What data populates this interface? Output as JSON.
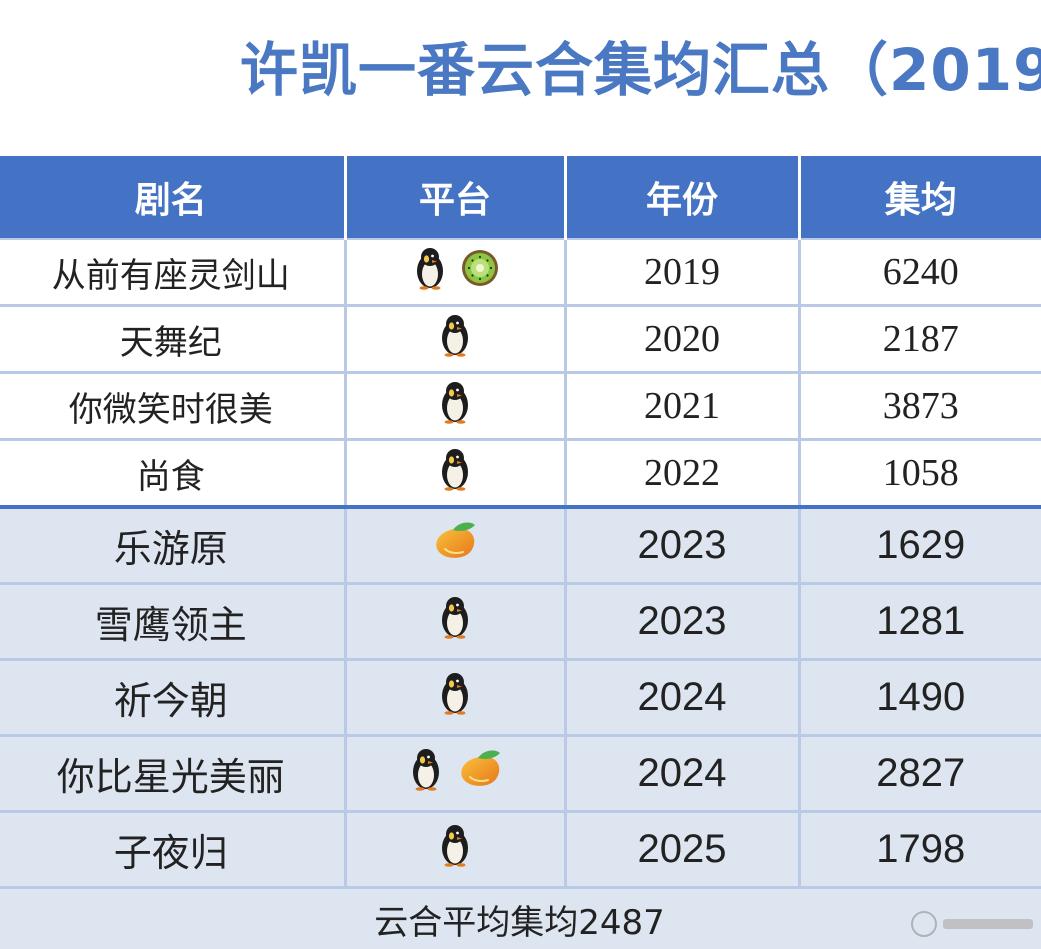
{
  "title": "许凯一番云合集均汇总（2019",
  "table": {
    "headers": [
      "剧名",
      "平台",
      "年份",
      "集均"
    ],
    "rows": [
      {
        "name": "从前有座灵剑山",
        "platforms": [
          "penguin-icon",
          "kiwi-icon"
        ],
        "year": "2019",
        "avg": "6240",
        "style": "light"
      },
      {
        "name": "天舞纪",
        "platforms": [
          "penguin-icon"
        ],
        "year": "2020",
        "avg": "2187",
        "style": "light"
      },
      {
        "name": "你微笑时很美",
        "platforms": [
          "penguin-icon"
        ],
        "year": "2021",
        "avg": "3873",
        "style": "light"
      },
      {
        "name": "尚食",
        "platforms": [
          "penguin-icon"
        ],
        "year": "2022",
        "avg": "1058",
        "style": "light"
      },
      {
        "name": "乐游原",
        "platforms": [
          "mango-icon"
        ],
        "year": "2023",
        "avg": "1629",
        "style": "dark"
      },
      {
        "name": "雪鹰领主",
        "platforms": [
          "penguin-icon"
        ],
        "year": "2023",
        "avg": "1281",
        "style": "dark"
      },
      {
        "name": "祈今朝",
        "platforms": [
          "penguin-icon"
        ],
        "year": "2024",
        "avg": "1490",
        "style": "dark"
      },
      {
        "name": "你比星光美丽",
        "platforms": [
          "penguin-icon",
          "mango-icon"
        ],
        "year": "2024",
        "avg": "2827",
        "style": "dark"
      },
      {
        "name": "子夜归",
        "platforms": [
          "penguin-icon"
        ],
        "year": "2025",
        "avg": "1798",
        "style": "dark"
      }
    ],
    "footer": "云合平均集均2487"
  },
  "colors": {
    "title": "#4a78c2",
    "header_bg": "#4472c4",
    "row_dark_bg": "#dde5f1",
    "grid": "#b9c9e6"
  }
}
